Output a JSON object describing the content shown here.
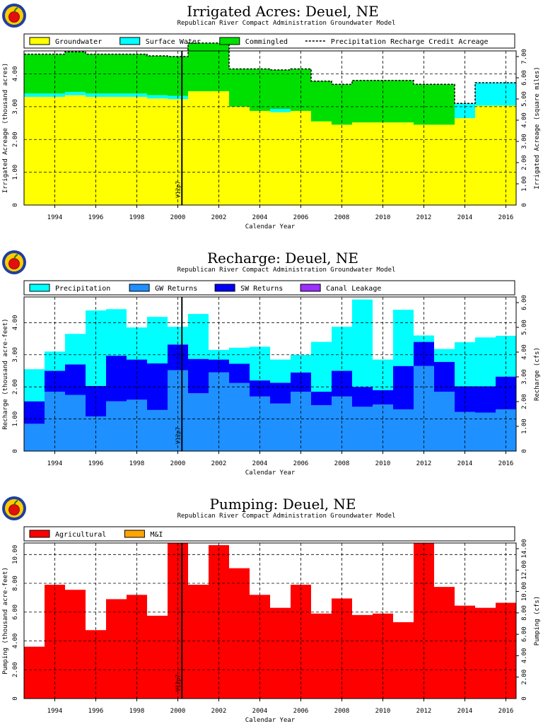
{
  "figure": {
    "logo_icon": "apple-logo"
  },
  "chart_data": [
    {
      "type": "area",
      "title": "Irrigated Acres: Deuel, NE",
      "subtitle": "Republican River Compact Administration Groundwater Model",
      "xlabel": "Calendar Year",
      "ylabel": "Irrigated Acreage (thousand acres)",
      "y2label": "Irrigated Acreage (square miles)",
      "x_ticks": [
        "1994",
        "1996",
        "1998",
        "2000",
        "2002",
        "2004",
        "2006",
        "2008",
        "2010",
        "2012",
        "2014",
        "2016"
      ],
      "y_ticks": [
        "1.00",
        "2.00",
        "3.00",
        "4.00"
      ],
      "y2_ticks": [
        "1.00",
        "2.00",
        "3.00",
        "4.00",
        "5.00",
        "6.00",
        "7.00"
      ],
      "ylim": [
        0,
        4.7
      ],
      "xlim": [
        1993,
        2017
      ],
      "grid": true,
      "stacked": true,
      "marker": {
        "x": 2000.7,
        "label": "V12p7"
      },
      "legend": [
        "Groundwater",
        "Surface Water",
        "Commingled",
        "Precipitation Recharge Credit Acreage"
      ],
      "x": [
        1993,
        1994,
        1995,
        1996,
        1997,
        1998,
        1999,
        2000,
        2001,
        2002,
        2003,
        2004,
        2005,
        2006,
        2007,
        2008,
        2009,
        2010,
        2011,
        2012,
        2013,
        2014,
        2015,
        2016
      ],
      "series": [
        {
          "name": "Groundwater",
          "color": "#ffff00",
          "values": [
            3.3,
            3.3,
            3.35,
            3.3,
            3.3,
            3.3,
            3.25,
            3.23,
            3.47,
            3.47,
            3.0,
            2.87,
            2.83,
            2.87,
            2.55,
            2.45,
            2.52,
            2.52,
            2.52,
            2.45,
            2.45,
            2.65,
            3.03,
            3.03
          ]
        },
        {
          "name": "Surface Water",
          "color": "#00ffff",
          "values": [
            0.1,
            0.1,
            0.1,
            0.1,
            0.1,
            0.1,
            0.1,
            0.1,
            0.0,
            0.0,
            0.0,
            0.0,
            0.1,
            0.0,
            0.0,
            0.0,
            0.0,
            0.0,
            0.0,
            0.0,
            0.0,
            0.45,
            0.7,
            0.7
          ]
        },
        {
          "name": "Commingled",
          "color": "#00e000",
          "values": [
            1.2,
            1.2,
            1.22,
            1.2,
            1.2,
            1.2,
            1.2,
            1.2,
            1.47,
            1.47,
            1.15,
            1.28,
            1.19,
            1.28,
            1.23,
            1.23,
            1.28,
            1.28,
            1.28,
            1.23,
            1.23,
            0.0,
            0.0,
            0.0
          ]
        }
      ],
      "precip_credit": [
        4.6,
        4.6,
        4.67,
        4.6,
        4.6,
        4.6,
        4.55,
        4.53,
        4.94,
        4.94,
        4.15,
        4.15,
        4.12,
        4.15,
        3.78,
        3.68,
        3.8,
        3.8,
        3.8,
        3.68,
        3.68,
        3.1,
        3.73,
        3.73
      ]
    },
    {
      "type": "area",
      "title": "Recharge: Deuel, NE",
      "subtitle": "Republican River Compact Administration Groundwater Model",
      "xlabel": "Calendar Year",
      "ylabel": "Recharge (thousand acre-feet)",
      "y2label": "Recharge (cfs)",
      "x_ticks": [
        "1994",
        "1996",
        "1998",
        "2000",
        "2002",
        "2004",
        "2006",
        "2008",
        "2010",
        "2012",
        "2014",
        "2016"
      ],
      "y_ticks": [
        "1.00",
        "2.00",
        "3.00",
        "4.00"
      ],
      "y2_ticks": [
        "1.00",
        "2.00",
        "3.00",
        "4.00",
        "5.00",
        "6.00"
      ],
      "ylim": [
        0,
        4.8
      ],
      "xlim": [
        1993,
        2017
      ],
      "grid": true,
      "stacked": true,
      "marker": {
        "x": 2000.7,
        "label": "V12p7"
      },
      "legend": [
        "Precipitation",
        "GW Returns",
        "SW Returns",
        "Canal Leakage"
      ],
      "x": [
        1993,
        1994,
        1995,
        1996,
        1997,
        1998,
        1999,
        2000,
        2001,
        2002,
        2003,
        2004,
        2005,
        2006,
        2007,
        2008,
        2009,
        2010,
        2011,
        2012,
        2013,
        2014,
        2015,
        2016
      ],
      "series": [
        {
          "name": "GW Returns",
          "color": "#1e90ff",
          "values": [
            0.85,
            1.85,
            1.75,
            1.08,
            1.55,
            1.6,
            1.28,
            2.52,
            1.8,
            2.45,
            2.12,
            1.7,
            1.48,
            1.85,
            1.43,
            1.7,
            1.38,
            1.45,
            1.3,
            2.65,
            1.85,
            1.22,
            1.2,
            1.3
          ]
        },
        {
          "name": "SW Returns",
          "color": "#0000ff",
          "values": [
            0.7,
            0.65,
            0.95,
            0.95,
            1.42,
            1.25,
            1.45,
            0.8,
            1.07,
            0.4,
            0.6,
            0.5,
            0.65,
            0.6,
            0.42,
            0.8,
            0.62,
            0.45,
            1.35,
            0.75,
            0.93,
            0.8,
            0.82,
            1.02
          ]
        },
        {
          "name": "Canal Leakage",
          "color": "#9b30ff",
          "values": [
            0,
            0,
            0,
            0,
            0,
            0,
            0,
            0,
            0,
            0,
            0,
            0,
            0,
            0,
            0,
            0,
            0,
            0,
            0,
            0,
            0,
            0,
            0,
            0
          ]
        },
        {
          "name": "Precipitation",
          "color": "#00ffff",
          "values": [
            1.0,
            0.6,
            0.95,
            2.35,
            1.45,
            1.0,
            1.45,
            0.55,
            1.4,
            0.3,
            0.5,
            1.05,
            0.72,
            0.55,
            1.55,
            1.37,
            2.72,
            0.95,
            1.75,
            0.2,
            0.4,
            1.37,
            1.52,
            1.27
          ]
        }
      ]
    },
    {
      "type": "bar",
      "title": "Pumping: Deuel, NE",
      "subtitle": "Republican River Compact Administration Groundwater Model",
      "xlabel": "Calendar Year",
      "ylabel": "Pumping (thousand acre-feet)",
      "y2label": "Pumping (cfs)",
      "x_ticks": [
        "1994",
        "1996",
        "1998",
        "2000",
        "2002",
        "2004",
        "2006",
        "2008",
        "2010",
        "2012",
        "2014",
        "2016"
      ],
      "y_ticks": [
        "2.00",
        "4.00",
        "6.00",
        "8.00",
        "10.00"
      ],
      "y2_ticks": [
        "2.00",
        "4.00",
        "6.00",
        "8.00",
        "10.00",
        "12.00",
        "14.00"
      ],
      "ylim": [
        0,
        10.8
      ],
      "xlim": [
        1993,
        2017
      ],
      "grid": true,
      "stacked": true,
      "marker": {
        "x": 2000.7,
        "label": "V12p7"
      },
      "legend": [
        "Agricultural",
        "M&I"
      ],
      "x": [
        1993,
        1994,
        1995,
        1996,
        1997,
        1998,
        1999,
        2000,
        2001,
        2002,
        2003,
        2004,
        2005,
        2006,
        2007,
        2008,
        2009,
        2010,
        2011,
        2012,
        2013,
        2014,
        2015,
        2016
      ],
      "series": [
        {
          "name": "Agricultural",
          "color": "#ff0000",
          "values": [
            3.6,
            7.9,
            7.55,
            4.75,
            6.9,
            7.2,
            5.75,
            10.8,
            7.9,
            10.65,
            9.05,
            7.2,
            6.3,
            7.9,
            5.9,
            6.95,
            5.8,
            5.9,
            5.3,
            10.8,
            7.75,
            6.45,
            6.3,
            6.65
          ]
        },
        {
          "name": "M&I",
          "color": "#ffa500",
          "values": [
            0,
            0,
            0,
            0,
            0,
            0,
            0,
            0,
            0,
            0,
            0,
            0,
            0,
            0,
            0,
            0,
            0,
            0,
            0,
            0,
            0,
            0,
            0,
            0
          ]
        }
      ]
    }
  ]
}
